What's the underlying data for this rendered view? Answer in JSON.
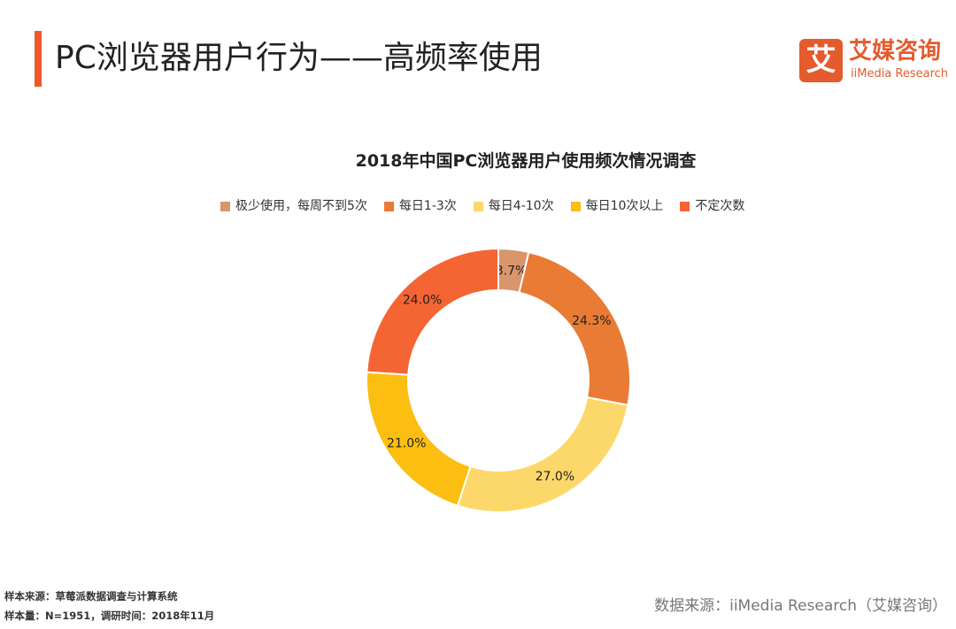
{
  "header": {
    "title": "PC浏览器用户行为——高频率使用",
    "accent_color": "#f0582a"
  },
  "logo": {
    "mark": "艾",
    "name_cn": "艾媒咨询",
    "name_en": "iiMedia Research",
    "color": "#e45b2d"
  },
  "chart_data": {
    "type": "pie",
    "variant": "donut",
    "title": "2018年中国PC浏览器用户使用频次情况调查",
    "legend_position": "top",
    "unit": "%",
    "slices": [
      {
        "label": "极少使用，每周不到5次",
        "value": 3.7,
        "value_label": "3.7%",
        "color": "#d9956b"
      },
      {
        "label": "每日1-3次",
        "value": 24.3,
        "value_label": "24.3%",
        "color": "#ea7b34"
      },
      {
        "label": "每日4-10次",
        "value": 27.0,
        "value_label": "27.0%",
        "color": "#fcd86a"
      },
      {
        "label": "每日10次以上",
        "value": 21.0,
        "value_label": "21.0%",
        "color": "#fbbe11"
      },
      {
        "label": "不定次数",
        "value": 24.0,
        "value_label": "24.0%",
        "color": "#f56433"
      }
    ]
  },
  "footer": {
    "sample_source": "样本来源：草莓派数据调查与计算系统",
    "sample_info": "样本量：N=1951，调研时间：2018年11月",
    "data_source": "数据来源：iiMedia Research（艾媒咨询）"
  }
}
